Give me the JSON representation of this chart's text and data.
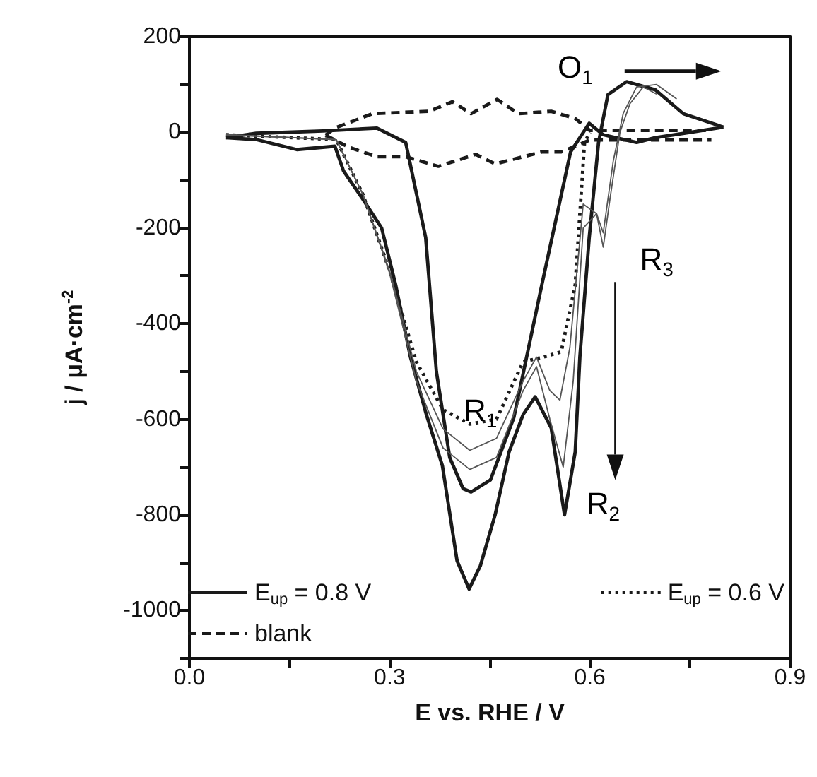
{
  "chart_data": {
    "type": "line",
    "xlabel": "E vs. RHE / V",
    "ylabel": "j / μA·cm$^{-2}$",
    "xlim": [
      0,
      0.9
    ],
    "ylim": [
      -1100,
      200
    ],
    "xticks": [
      {
        "value": 0,
        "label": "0.0"
      },
      {
        "value": 0.15,
        "label": null
      },
      0.3,
      {
        "value": 0.45,
        "label": null
      },
      0.6,
      {
        "value": 0.75,
        "label": null
      },
      0.9
    ],
    "yticks": [
      {
        "value": -1100,
        "label": null
      },
      -1000,
      {
        "value": -900,
        "label": null
      },
      -800,
      {
        "value": -700,
        "label": null
      },
      -600,
      {
        "value": -500,
        "label": null
      },
      -400,
      {
        "value": -300,
        "label": null
      },
      -200,
      {
        "value": -100,
        "label": null
      },
      0,
      {
        "value": 100,
        "label": null
      },
      200
    ],
    "grid": false,
    "legend": "bottom",
    "marker": "none",
    "series": [
      {
        "name": "E$_{up}$ = 0.8 V",
        "color": "#1a1a1a",
        "line_style": "solid",
        "x": [
          0.055,
          0.1,
          0.161,
          0.218,
          0.231,
          0.26,
          0.288,
          0.309,
          0.331,
          0.355,
          0.379,
          0.401,
          0.419,
          0.436,
          0.458,
          0.479,
          0.5,
          0.518,
          0.542,
          0.562,
          0.578,
          0.585,
          0.599,
          0.613,
          0.627,
          0.655,
          0.698,
          0.74,
          0.8
        ],
        "values": [
          -11,
          -15,
          -36,
          -29,
          -81,
          -140,
          -200,
          -319,
          -469,
          -590,
          -697,
          -896,
          -955,
          -906,
          -800,
          -668,
          -590,
          -553,
          -618,
          -800,
          -668,
          -469,
          -220,
          -21,
          79,
          106,
          89,
          39,
          11
        ]
      },
      {
        "name": "E$_{up}$ = 0.6 V",
        "color": "#1a1a1a",
        "line_style": "dotted",
        "x": [
          0.055,
          0.22,
          0.26,
          0.3,
          0.34,
          0.38,
          0.42,
          0.46,
          0.5,
          0.53,
          0.557,
          0.578,
          0.592,
          0.6
        ],
        "values": [
          -5,
          -15,
          -130,
          -290,
          -480,
          -580,
          -610,
          -600,
          -480,
          -470,
          -459,
          -319,
          -21,
          0
        ]
      },
      {
        "name": "blank",
        "color": "#1a1a1a",
        "line_style": "dashed",
        "x": [
          0.204,
          0.218,
          0.274,
          0.359,
          0.394,
          0.422,
          0.461,
          0.493,
          0.542,
          0.578,
          0.6,
          0.782
        ],
        "values": [
          -6,
          9,
          39,
          44,
          64,
          39,
          69,
          39,
          44,
          29,
          4,
          4
        ]
      },
      {
        "color": "#1a1a1a",
        "line_style": "solid",
        "x": [
          0.055,
          0.1,
          0.2,
          0.281,
          0.324,
          0.354,
          0.37,
          0.39,
          0.41,
          0.422,
          0.451,
          0.486,
          0.528,
          0.571,
          0.599,
          0.62,
          0.67,
          0.698,
          0.75,
          0.8
        ],
        "values": [
          -11,
          -2,
          3,
          9,
          -21,
          -220,
          -500,
          -680,
          -745,
          -752,
          -727,
          -597,
          -319,
          -41,
          19,
          -5,
          -21,
          -11,
          0,
          11
        ]
      },
      {
        "color": "#1a1a1a",
        "line_style": "dashed",
        "x": [
          0.204,
          0.239,
          0.281,
          0.324,
          0.373,
          0.429,
          0.458,
          0.486,
          0.528,
          0.557,
          0.6,
          0.782
        ],
        "values": [
          -6,
          -31,
          -51,
          -51,
          -71,
          -46,
          -66,
          -56,
          -41,
          -41,
          -16,
          -16
        ]
      },
      {
        "color": "#555555",
        "line_style": "solid",
        "x": [
          0.055,
          0.22,
          0.26,
          0.3,
          0.34,
          0.38,
          0.42,
          0.46,
          0.5,
          0.52,
          0.54,
          0.555,
          0.57,
          0.59,
          0.61,
          0.62,
          0.63,
          0.645,
          0.66,
          0.68,
          0.7
        ],
        "values": [
          -5,
          -15,
          -130,
          -290,
          -500,
          -620,
          -665,
          -640,
          -520,
          -470,
          -540,
          -560,
          -450,
          -150,
          -170,
          -240,
          -140,
          0,
          60,
          95,
          80
        ]
      },
      {
        "color": "#555555",
        "line_style": "solid",
        "x": [
          0.055,
          0.22,
          0.26,
          0.3,
          0.34,
          0.38,
          0.42,
          0.46,
          0.5,
          0.52,
          0.54,
          0.56,
          0.575,
          0.59,
          0.61,
          0.62,
          0.635,
          0.65,
          0.67,
          0.7,
          0.73
        ],
        "values": [
          -5,
          -15,
          -130,
          -295,
          -520,
          -660,
          -705,
          -680,
          -540,
          -490,
          -600,
          -700,
          -520,
          -200,
          -170,
          -210,
          -60,
          40,
          95,
          100,
          70
        ]
      }
    ],
    "annotations": [
      "O$_{1}$",
      "R$_{1}$",
      "R$_{2}$",
      "R$_{3}$"
    ]
  }
}
